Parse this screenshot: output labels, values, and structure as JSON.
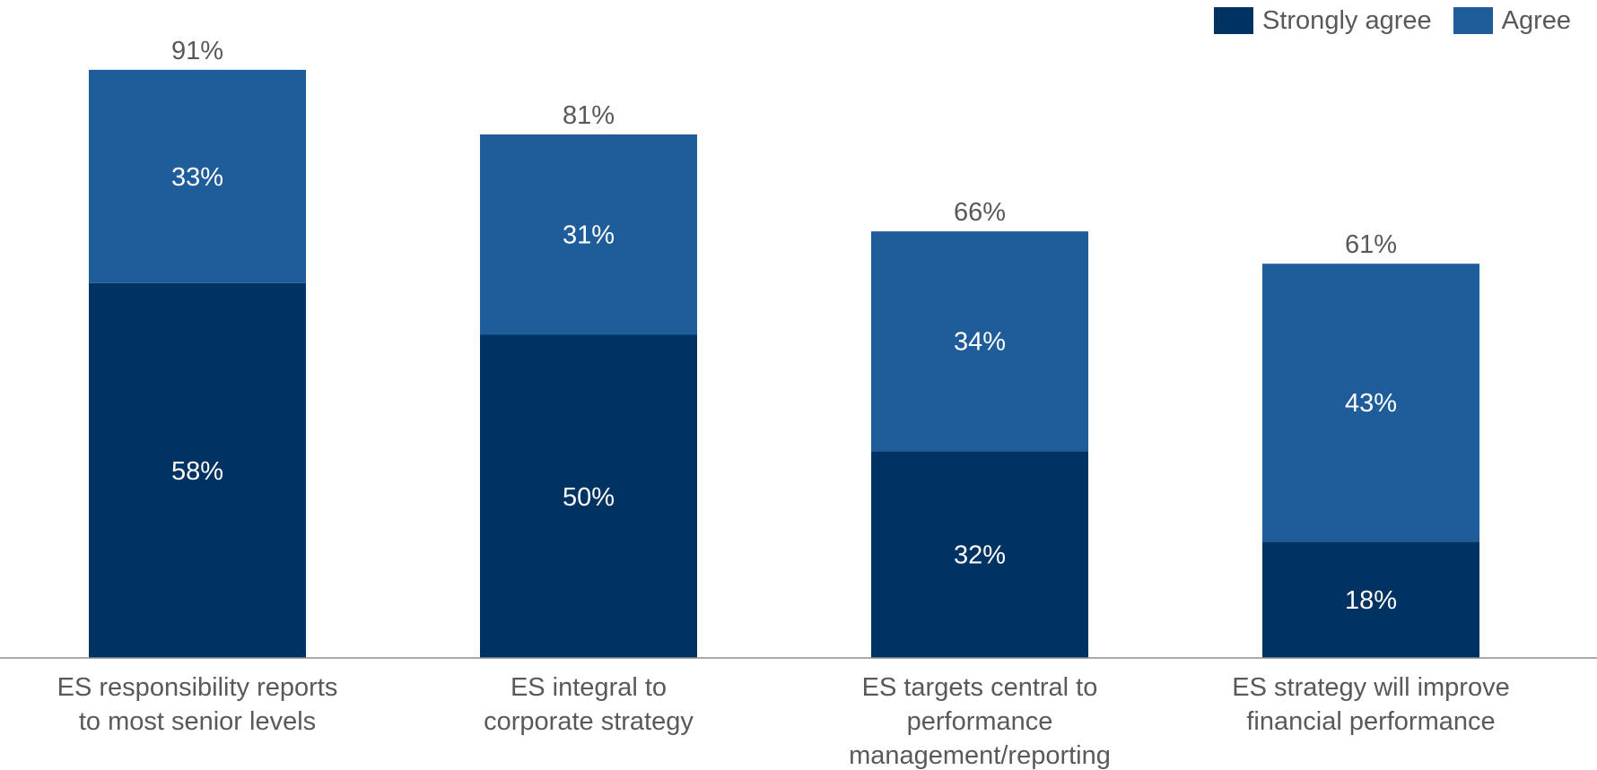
{
  "chart_data": {
    "type": "bar",
    "stacked": true,
    "categories": [
      [
        "ES responsibility reports",
        "to most senior levels"
      ],
      [
        "ES integral to",
        "corporate strategy"
      ],
      [
        "ES targets central to",
        "performance",
        "management/reporting"
      ],
      [
        "ES strategy will improve",
        "financial performance"
      ]
    ],
    "series": [
      {
        "name": "Strongly agree",
        "color": "#003262",
        "values": [
          58,
          50,
          32,
          18
        ],
        "labels": [
          "58%",
          "50%",
          "32%",
          "18%"
        ]
      },
      {
        "name": "Agree",
        "color": "#1e5c9a",
        "values": [
          33,
          31,
          34,
          43
        ],
        "labels": [
          "33%",
          "31%",
          "34%",
          "43%"
        ]
      }
    ],
    "totals": [
      91,
      81,
      66,
      61
    ],
    "total_labels": [
      "91%",
      "81%",
      "66%",
      "61%"
    ],
    "title": "",
    "xlabel": "",
    "ylabel": "",
    "ylim": [
      0,
      100
    ],
    "grid": false,
    "legend_position": "top-right"
  }
}
